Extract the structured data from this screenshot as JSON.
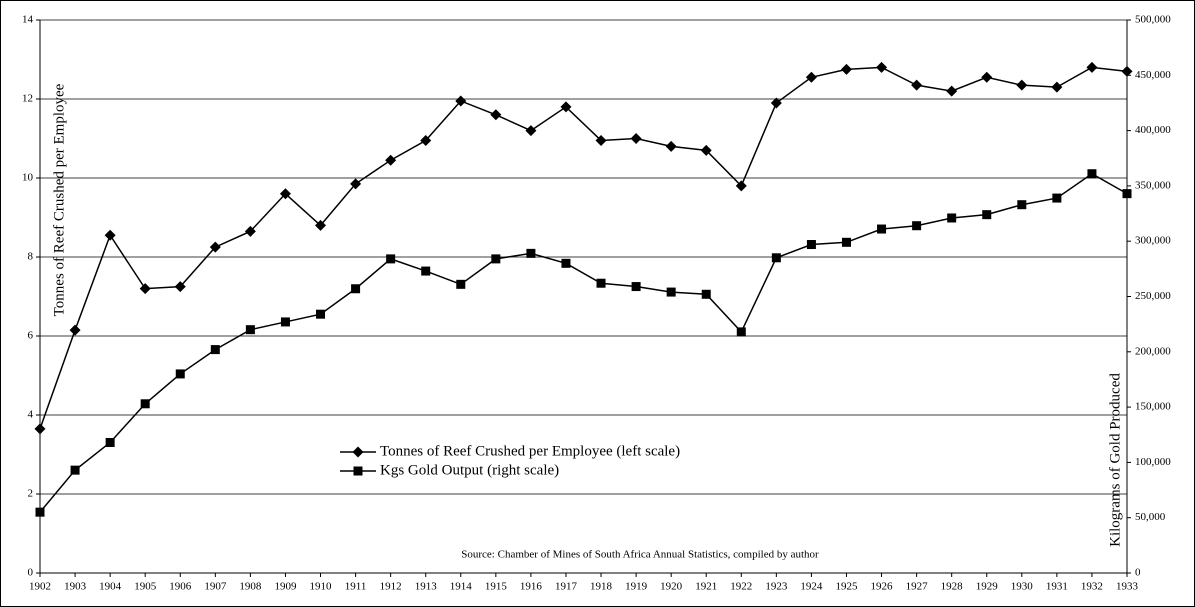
{
  "chart_data": {
    "type": "line",
    "x": [
      1902,
      1903,
      1904,
      1905,
      1906,
      1907,
      1908,
      1909,
      1910,
      1911,
      1912,
      1913,
      1914,
      1915,
      1916,
      1917,
      1918,
      1919,
      1920,
      1921,
      1922,
      1923,
      1924,
      1925,
      1926,
      1927,
      1928,
      1929,
      1930,
      1931,
      1932,
      1933
    ],
    "xlim": [
      1902,
      1933
    ],
    "xticks": [
      1902,
      1903,
      1904,
      1905,
      1906,
      1907,
      1908,
      1909,
      1910,
      1911,
      1912,
      1913,
      1914,
      1915,
      1916,
      1917,
      1918,
      1919,
      1920,
      1921,
      1922,
      1923,
      1924,
      1925,
      1926,
      1927,
      1928,
      1929,
      1930,
      1931,
      1932,
      1933
    ],
    "ylim": [
      0,
      14
    ],
    "yticks": [
      0,
      2,
      4,
      6,
      8,
      10,
      12,
      14
    ],
    "y2lim": [
      0,
      500000
    ],
    "y2ticks": [
      0,
      {
        "value": 50000,
        "label": "50,000"
      },
      {
        "value": 100000,
        "label": "100,000"
      },
      {
        "value": 150000,
        "label": "150,000"
      },
      {
        "value": 200000,
        "label": "200,000"
      },
      {
        "value": 250000,
        "label": "250,000"
      },
      {
        "value": 300000,
        "label": "300,000"
      },
      {
        "value": 350000,
        "label": "350,000"
      },
      {
        "value": 400000,
        "label": "400,000"
      },
      {
        "value": 450000,
        "label": "450,000"
      },
      {
        "value": 500000,
        "label": "500,000"
      }
    ],
    "ylabel": "Tonnes of Reef Crushed per Employee",
    "y2label": "Kilograms of Gold Produced",
    "annotation": "Source: Chamber of Mines of South Africa Annual Statistics, compiled by author",
    "grid": true,
    "series": [
      {
        "name": "Tonnes of Reef Crushed per Employee (left scale)",
        "color": "#000000",
        "marker": "diamond",
        "values": [
          3.65,
          6.15,
          8.55,
          7.2,
          7.25,
          8.25,
          8.65,
          9.6,
          8.8,
          9.85,
          10.45,
          10.95,
          11.95,
          11.6,
          11.2,
          11.8,
          10.95,
          11.0,
          10.8,
          10.7,
          9.8,
          11.9,
          12.55,
          12.75,
          12.8,
          12.35,
          12.2,
          12.55,
          12.35,
          12.3,
          12.8,
          12.7
        ]
      },
      {
        "name": "Kgs Gold Output (right scale)",
        "color": "#000000",
        "marker": "square",
        "axis": "y2",
        "values": [
          55000,
          93000,
          118000,
          153000,
          180000,
          202000,
          220000,
          227000,
          234000,
          257000,
          284000,
          273000,
          261000,
          284000,
          289000,
          280000,
          262000,
          259000,
          254000,
          252000,
          218000,
          285000,
          297000,
          299000,
          311000,
          314000,
          321000,
          324000,
          333000,
          339000,
          361000,
          343000
        ]
      }
    ]
  }
}
